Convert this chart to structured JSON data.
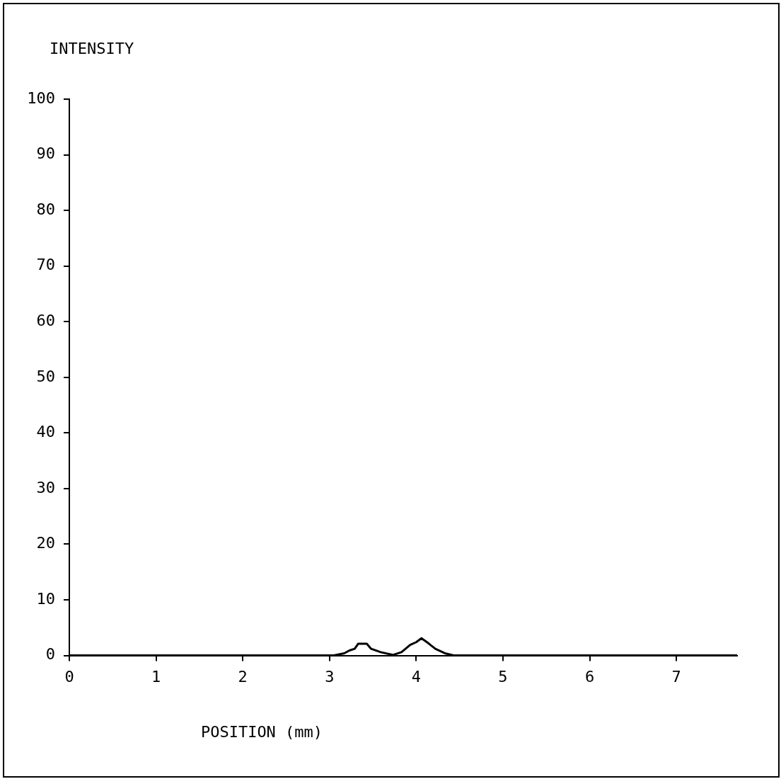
{
  "chart_data": {
    "type": "line",
    "xlabel": "POSITION (mm)",
    "ylabel": "INTENSITY",
    "x": [
      0,
      3.0,
      3.04,
      3.17,
      3.23,
      3.29,
      3.33,
      3.43,
      3.48,
      3.59,
      3.73,
      3.83,
      3.93,
      4.0,
      4.06,
      4.14,
      4.22,
      4.33,
      4.44,
      7.7
    ],
    "series": [
      {
        "color": "#000000",
        "values": [
          0,
          0,
          0,
          0.4,
          0.9,
          1.2,
          2.1,
          2.1,
          1.2,
          0.6,
          0.1,
          0.6,
          1.9,
          2.4,
          3.1,
          2.2,
          1.2,
          0.4,
          0,
          0
        ]
      }
    ],
    "xlim": [
      0,
      7.7
    ],
    "xticks": [
      0,
      1,
      2,
      3,
      4,
      5,
      6,
      7
    ],
    "ylim": [
      0,
      100
    ],
    "yticks": [
      0,
      10,
      20,
      30,
      40,
      50,
      60,
      70,
      80,
      90,
      100
    ],
    "grid": false,
    "legend": false,
    "marker": "none",
    "line_style": "solid"
  }
}
